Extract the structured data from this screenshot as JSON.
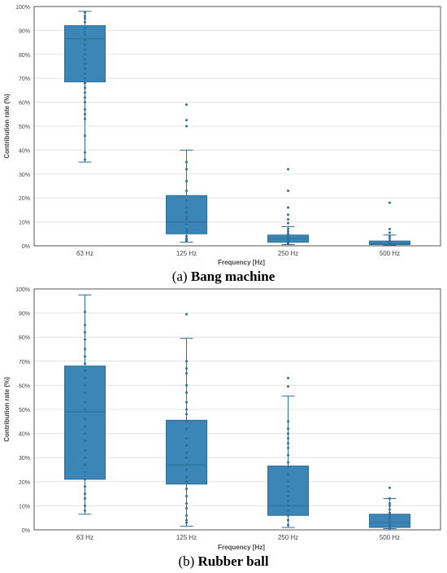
{
  "colors": {
    "box": "#3b86b6",
    "box_edge": "#2c6f99",
    "point": "#2f6f98",
    "grid": "#e3e3e3",
    "axis": "#555555",
    "text": "#444444"
  },
  "chart_data": [
    {
      "type": "box",
      "caption_tag": "(a)",
      "caption_name": "Bang machine",
      "xlabel": "Frequency  [Hz]",
      "ylabel": "Contribution rate (%)",
      "ylim": [
        0,
        100
      ],
      "yticks": [
        0,
        10,
        20,
        30,
        40,
        50,
        60,
        70,
        80,
        90,
        100
      ],
      "ytick_labels": [
        "0%",
        "10%",
        "20%",
        "30%",
        "40%",
        "50%",
        "60%",
        "70%",
        "80%",
        "90%",
        "100%"
      ],
      "grid": true,
      "categories": [
        "63 Hz",
        "125 Hz",
        "250 Hz",
        "500 Hz"
      ],
      "boxes": [
        {
          "min": 35,
          "q1": 68.5,
          "median": 86.5,
          "q3": 92,
          "max": 98,
          "points": [
            97.5,
            96,
            95,
            93.5,
            91,
            89.5,
            88,
            86,
            84,
            82,
            80,
            78,
            76,
            74,
            72,
            70,
            68,
            66,
            64,
            62,
            60,
            57,
            55,
            53,
            46,
            39,
            36
          ]
        },
        {
          "min": 1.5,
          "q1": 5,
          "median": 10,
          "q3": 21,
          "max": 40,
          "points": [
            59,
            52.5,
            50,
            35,
            32,
            27,
            23,
            19,
            16,
            14,
            12,
            11,
            9,
            7,
            6,
            4,
            3,
            2.5,
            2
          ]
        },
        {
          "min": 0.5,
          "q1": 1.5,
          "median": 3,
          "q3": 4.5,
          "max": 8,
          "points": [
            32,
            23,
            16,
            13,
            11,
            9.5,
            7,
            6,
            5,
            4,
            3.5,
            3,
            2.5,
            2,
            1.5,
            1,
            0.8
          ]
        },
        {
          "min": 0.3,
          "q1": 0.5,
          "median": 1,
          "q3": 2,
          "max": 4.5,
          "points": [
            18,
            7,
            5.5,
            4,
            3,
            2,
            1.5,
            1,
            0.8,
            0.5
          ]
        }
      ]
    },
    {
      "type": "box",
      "caption_tag": "(b)",
      "caption_name": "Rubber ball",
      "xlabel": "Frequency  [Hz]",
      "ylabel": "Contribution rate (%)",
      "ylim": [
        0,
        100
      ],
      "yticks": [
        0,
        10,
        20,
        30,
        40,
        50,
        60,
        70,
        80,
        90,
        100
      ],
      "ytick_labels": [
        "0%",
        "10%",
        "20%",
        "30%",
        "40%",
        "50%",
        "60%",
        "70%",
        "80%",
        "90%",
        "100%"
      ],
      "grid": true,
      "categories": [
        "63 Hz",
        "125 Hz",
        "250 Hz",
        "500 Hz"
      ],
      "boxes": [
        {
          "min": 6.5,
          "q1": 21,
          "median": 49,
          "q3": 68,
          "max": 97.5,
          "points": [
            90.5,
            85,
            82,
            79,
            75,
            72,
            69,
            66,
            63,
            60,
            57,
            53,
            50,
            46,
            43,
            40,
            37,
            33,
            30,
            27,
            24,
            21,
            18,
            15,
            13,
            10,
            8
          ]
        },
        {
          "min": 1.5,
          "q1": 19,
          "median": 27,
          "q3": 45.5,
          "max": 79.5,
          "points": [
            89.5,
            70,
            67,
            65,
            60,
            57,
            53,
            50,
            48,
            45,
            42,
            38,
            35,
            32,
            30,
            27,
            25,
            22,
            20,
            17,
            14,
            11,
            9,
            6,
            4,
            3
          ]
        },
        {
          "min": 1,
          "q1": 6,
          "median": 10,
          "q3": 26.5,
          "max": 55.5,
          "points": [
            63,
            59.5,
            45,
            42,
            40,
            38,
            36,
            34,
            31,
            28,
            26,
            23,
            20,
            18,
            16,
            14,
            12,
            10,
            8,
            6,
            4,
            2
          ]
        },
        {
          "min": 0.5,
          "q1": 1,
          "median": 3,
          "q3": 6.5,
          "max": 13,
          "points": [
            17.5,
            13,
            11,
            10,
            8.5,
            7,
            6,
            5,
            4,
            3,
            2,
            1.5,
            1,
            0.5
          ]
        }
      ]
    }
  ]
}
